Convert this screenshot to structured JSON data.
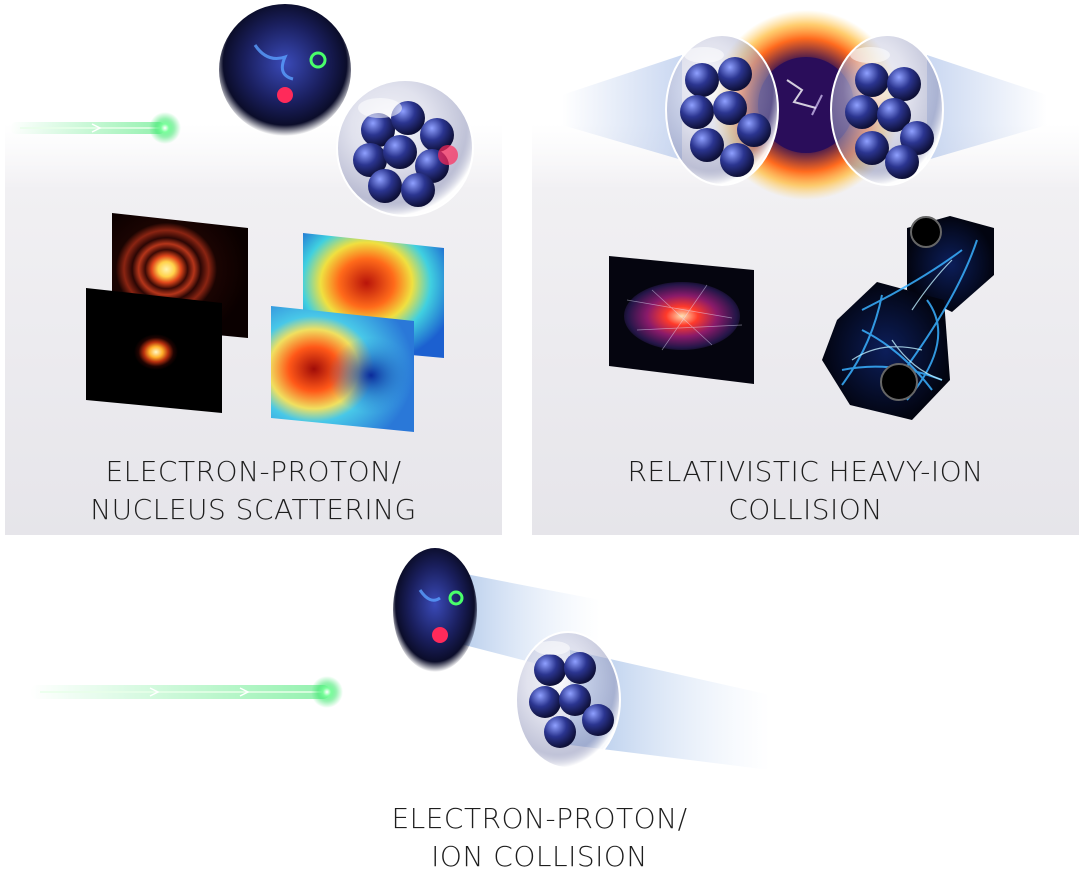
{
  "panels": {
    "scattering": {
      "label_line1": "ELECTRON-PROTON/",
      "label_line2": "NUCLEUS SCATTERING"
    },
    "heavy_ion": {
      "label_line1": "RELATIVISTIC HEAVY-ION",
      "label_line2": "COLLISION"
    },
    "collision": {
      "label_line1": "ELECTRON-PROTON/",
      "label_line2": "ION COLLISION"
    }
  },
  "colors": {
    "electron_glow": "#39e66b",
    "panel_bg": "#e9e8ed",
    "label_text": "#1e1e1e",
    "fireball": "#ff8a1e",
    "proton_core": "#1a1f5e"
  },
  "icons": [
    "electron-beam-icon",
    "proton-icon",
    "nucleus-icon",
    "fireball-icon",
    "heatmap-icon",
    "particle-tracks-icon"
  ]
}
